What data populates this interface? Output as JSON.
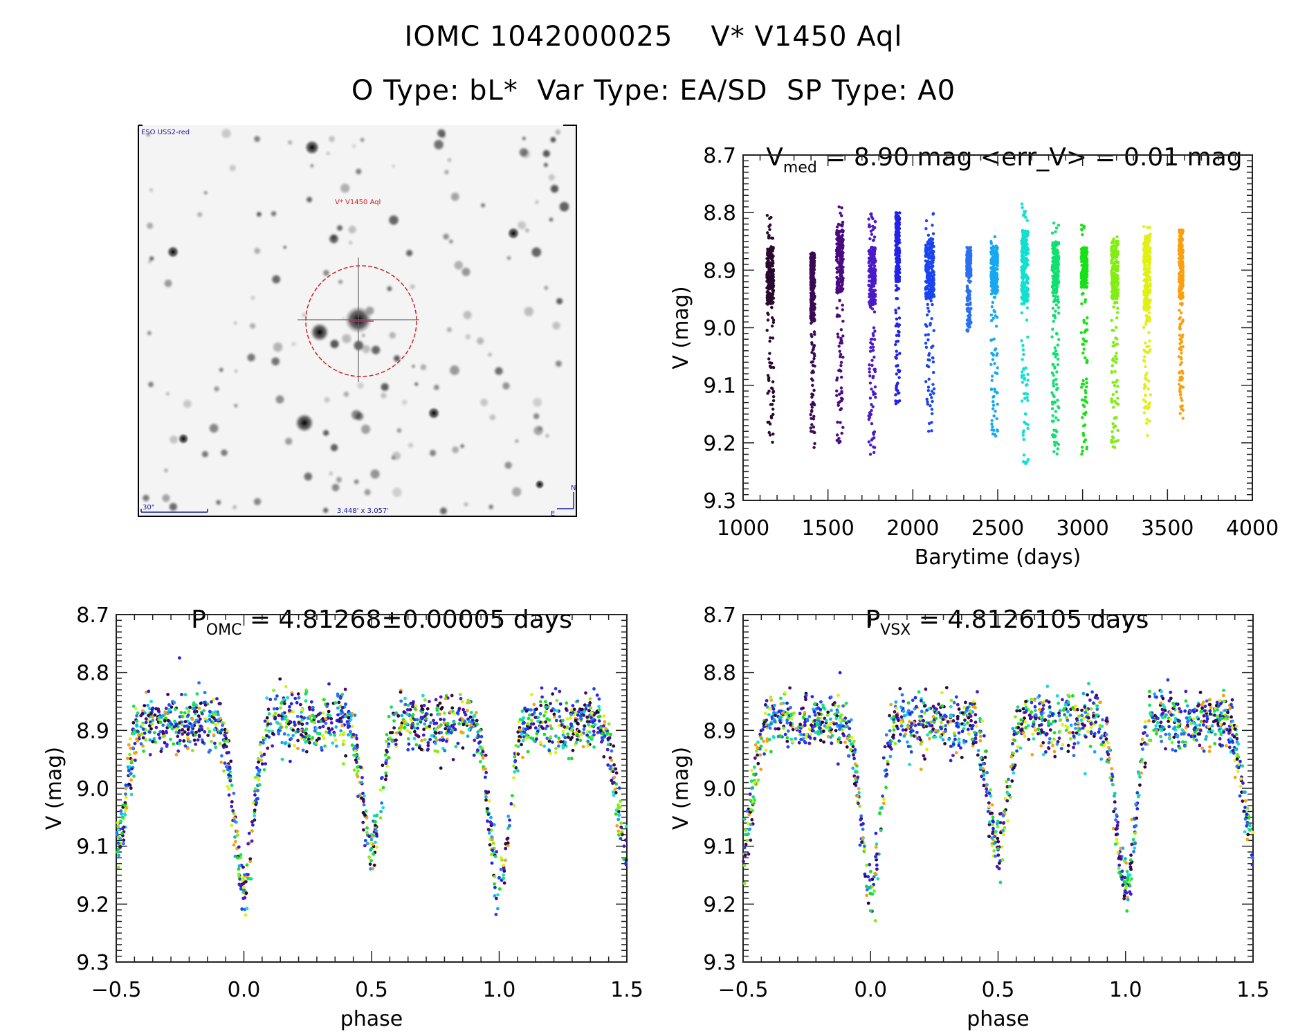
{
  "header": {
    "title_line1": "IOMC 1042000025    V* V1450 Aql",
    "title_line2": "O Type: bL*  Var Type: EA/SD  SP Type: A0"
  },
  "finder_chart": {
    "survey_label": "ESO USS2-red",
    "target_label": "V* V1450 Aql",
    "scale_bar_label": "30\"",
    "field_size_label": "3.448' x 3.057'",
    "north_label": "N",
    "east_label": "E",
    "colors": {
      "circle": "#cc2222",
      "annotation": "#1a1aa0"
    }
  },
  "chart_data": [
    {
      "type": "scatter",
      "id": "light-curve-time",
      "title_main": "V",
      "title_sub": "med",
      "title_rest": " = 8.90 mag <err_V> = 0.01 mag",
      "xlabel": "Barytime (days)",
      "ylabel": "V (mag)",
      "xlim": [
        1000,
        4000
      ],
      "ylim": [
        9.3,
        8.7
      ],
      "y_inverted": true,
      "xticks": [
        1000,
        1500,
        2000,
        2500,
        3000,
        3500,
        4000
      ],
      "xtick_labels": [
        "1000",
        "1500",
        "2000",
        "2500",
        "3000",
        "3500",
        "4000"
      ],
      "yticks": [
        8.7,
        8.8,
        8.9,
        9.0,
        9.1,
        9.2,
        9.3
      ],
      "ytick_labels": [
        "8.7",
        "8.8",
        "8.9",
        "9.0",
        "9.1",
        "9.2",
        "9.3"
      ],
      "colormap": "rainbow (dark purple → blue → cyan → green → yellow → orange by time)",
      "clusters": [
        {
          "x": 1160,
          "width": 40,
          "y_top": 8.8,
          "y_bottom": 9.2,
          "dense_top": 8.86,
          "dense_bottom": 8.96,
          "color": "#2a0830"
        },
        {
          "x": 1410,
          "width": 25,
          "y_top": 8.86,
          "y_bottom": 9.21,
          "dense_top": 8.87,
          "dense_bottom": 8.99,
          "color": "#3a0a55"
        },
        {
          "x": 1570,
          "width": 40,
          "y_top": 8.79,
          "y_bottom": 9.2,
          "dense_top": 8.83,
          "dense_bottom": 8.94,
          "color": "#4a0a80"
        },
        {
          "x": 1760,
          "width": 40,
          "y_top": 8.8,
          "y_bottom": 9.22,
          "dense_top": 8.86,
          "dense_bottom": 8.96,
          "color": "#4a1ac8"
        },
        {
          "x": 1910,
          "width": 25,
          "y_top": 8.8,
          "y_bottom": 9.14,
          "dense_top": 8.8,
          "dense_bottom": 8.92,
          "color": "#2222e8"
        },
        {
          "x": 2100,
          "width": 50,
          "y_top": 8.8,
          "y_bottom": 9.18,
          "dense_top": 8.85,
          "dense_bottom": 8.95,
          "color": "#1a44f0"
        },
        {
          "x": 2330,
          "width": 25,
          "y_top": 8.86,
          "y_bottom": 9.01,
          "dense_top": 8.87,
          "dense_bottom": 8.91,
          "color": "#2a70f0"
        },
        {
          "x": 2480,
          "width": 40,
          "y_top": 8.84,
          "y_bottom": 9.19,
          "dense_top": 8.86,
          "dense_bottom": 8.94,
          "color": "#18a8f0"
        },
        {
          "x": 2660,
          "width": 40,
          "y_top": 8.78,
          "y_bottom": 9.24,
          "dense_top": 8.83,
          "dense_bottom": 8.96,
          "color": "#10e0d0"
        },
        {
          "x": 2840,
          "width": 40,
          "y_top": 8.81,
          "y_bottom": 9.22,
          "dense_top": 8.85,
          "dense_bottom": 8.94,
          "color": "#10e070"
        },
        {
          "x": 3010,
          "width": 35,
          "y_top": 8.82,
          "y_bottom": 9.22,
          "dense_top": 8.86,
          "dense_bottom": 8.93,
          "color": "#18e018"
        },
        {
          "x": 3190,
          "width": 40,
          "y_top": 8.84,
          "y_bottom": 9.21,
          "dense_top": 8.85,
          "dense_bottom": 8.95,
          "color": "#80ee10"
        },
        {
          "x": 3380,
          "width": 40,
          "y_top": 8.81,
          "y_bottom": 9.19,
          "dense_top": 8.84,
          "dense_bottom": 8.97,
          "color": "#e0f010"
        },
        {
          "x": 3580,
          "width": 25,
          "y_top": 8.83,
          "y_bottom": 9.16,
          "dense_top": 8.83,
          "dense_bottom": 8.95,
          "color": "#f8a010"
        }
      ]
    },
    {
      "type": "scatter",
      "id": "phased-omc",
      "title_main": "P",
      "title_sub": "OMC",
      "title_rest": " = 4.81268±0.00005 days",
      "xlabel": "phase",
      "ylabel": "V (mag)",
      "xlim": [
        -0.5,
        1.5
      ],
      "ylim": [
        9.3,
        8.7
      ],
      "y_inverted": true,
      "xticks": [
        -0.5,
        0.0,
        0.5,
        1.0,
        1.5
      ],
      "xtick_labels": [
        "−0.5",
        "0.0",
        "0.5",
        "1.0",
        "1.5"
      ],
      "yticks": [
        8.7,
        8.8,
        8.9,
        9.0,
        9.1,
        9.2,
        9.3
      ],
      "ytick_labels": [
        "8.7",
        "8.8",
        "8.9",
        "9.0",
        "9.1",
        "9.2",
        "9.3"
      ],
      "light_curve_model": {
        "maximum_mag": 8.87,
        "primary_min_phase": 0.0,
        "primary_min_mag": 9.17,
        "secondary_min_phase": 0.5,
        "secondary_min_mag": 9.1,
        "scatter_mag": 0.03
      }
    },
    {
      "type": "scatter",
      "id": "phased-vsx",
      "title_main": "P",
      "title_sub": "VSX",
      "title_rest": " = 4.8126105 days",
      "xlabel": "phase",
      "ylabel": "V (mag)",
      "xlim": [
        -0.5,
        1.5
      ],
      "ylim": [
        9.3,
        8.7
      ],
      "y_inverted": true,
      "xticks": [
        -0.5,
        0.0,
        0.5,
        1.0,
        1.5
      ],
      "xtick_labels": [
        "−0.5",
        "0.0",
        "0.5",
        "1.0",
        "1.5"
      ],
      "yticks": [
        8.7,
        8.8,
        8.9,
        9.0,
        9.1,
        9.2,
        9.3
      ],
      "ytick_labels": [
        "8.7",
        "8.8",
        "8.9",
        "9.0",
        "9.1",
        "9.2",
        "9.3"
      ],
      "light_curve_model": {
        "maximum_mag": 8.87,
        "primary_min_phase": 0.0,
        "primary_min_mag": 9.17,
        "secondary_min_phase": 0.5,
        "secondary_min_mag": 9.1,
        "scatter_mag": 0.03
      }
    }
  ],
  "palette": [
    "#2a0830",
    "#3a0a55",
    "#4a0a80",
    "#4a1ac8",
    "#2222e8",
    "#1a44f0",
    "#2a70f0",
    "#18a8f0",
    "#10e0d0",
    "#10e070",
    "#18e018",
    "#80ee10",
    "#e0f010",
    "#f8a010"
  ]
}
